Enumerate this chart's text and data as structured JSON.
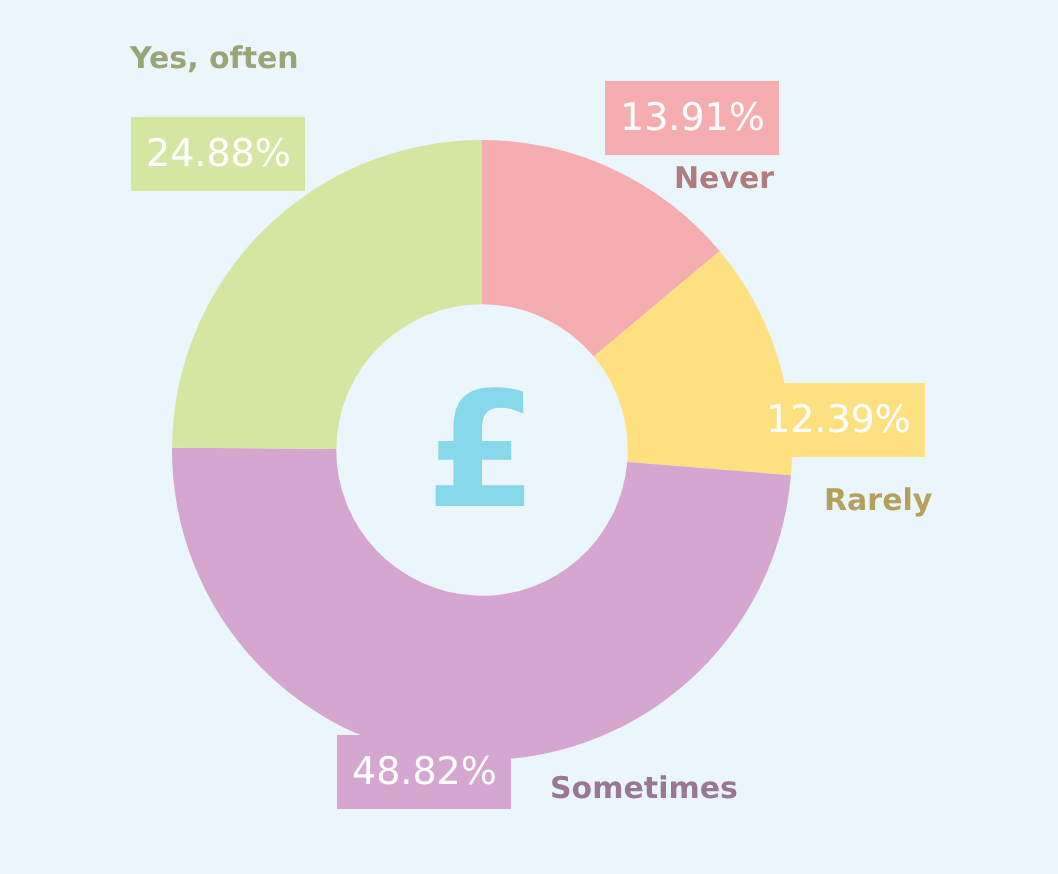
{
  "chart_data": {
    "type": "donut",
    "categories": [
      "Never",
      "Rarely",
      "Sometimes",
      "Yes, often"
    ],
    "values": [
      13.91,
      12.39,
      48.82,
      24.88
    ],
    "colors": [
      "#f5adb0",
      "#fde080",
      "#d5a6cf",
      "#d5e6a3"
    ],
    "value_labels": [
      "13.91%",
      "12.39%",
      "48.82%",
      "24.88%"
    ],
    "annotations": [
      "£"
    ],
    "legend": false
  }
}
